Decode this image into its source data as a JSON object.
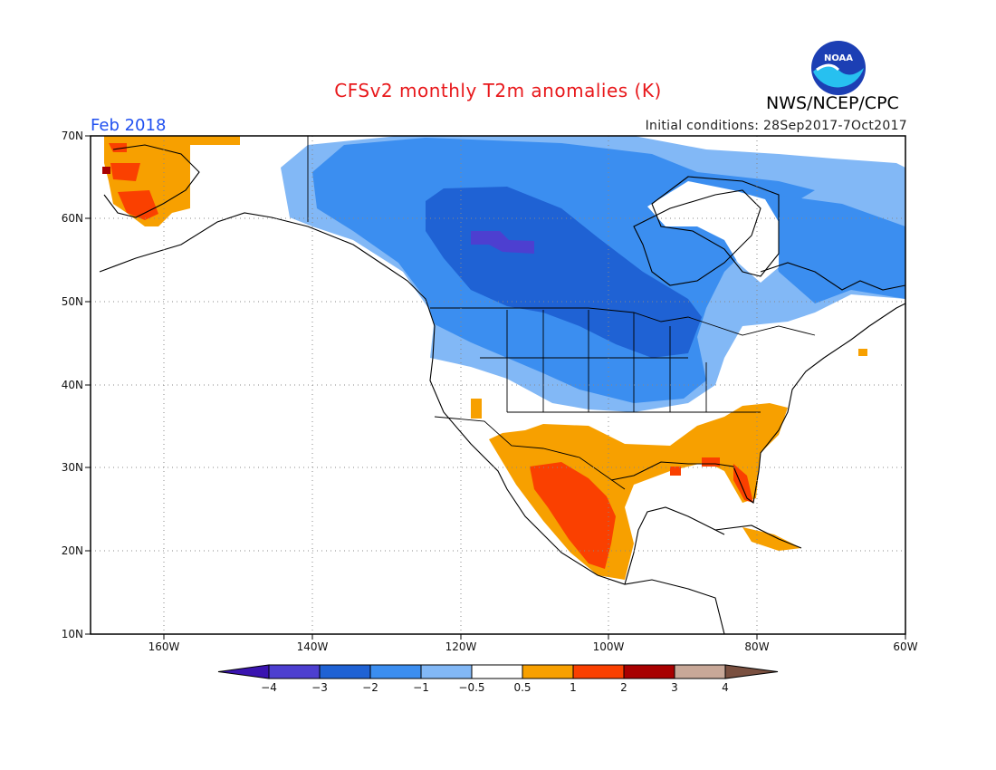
{
  "header": {
    "title": "CFSv2 monthly T2m anomalies (K)",
    "agency": "NWS/NCEP/CPC",
    "logo_text": "NOAA",
    "valid_period": "Feb 2018",
    "initial_conditions": "Initial conditions: 28Sep2017-7Oct2017"
  },
  "map": {
    "lat_labels": [
      "70N",
      "60N",
      "50N",
      "40N",
      "30N",
      "20N",
      "10N"
    ],
    "lon_labels": [
      "160W",
      "140W",
      "120W",
      "100W",
      "80W",
      "60W"
    ],
    "lat_range": [
      10,
      70
    ],
    "lon_range": [
      -171,
      -60
    ]
  },
  "colorbar": {
    "labels": [
      "-4",
      "-3",
      "-2",
      "-1",
      "-0.5",
      "0.5",
      "1",
      "2",
      "3",
      "4"
    ],
    "colors": [
      "#3a14b0",
      "#4d3fd0",
      "#1f62d4",
      "#3b8ef0",
      "#82b8f6",
      "#ffffff",
      "#f7a000",
      "#fa4000",
      "#a80000",
      "#c8a898",
      "#7a5040"
    ]
  },
  "colors": {
    "title": "#e8181b",
    "period": "#2050f0"
  }
}
